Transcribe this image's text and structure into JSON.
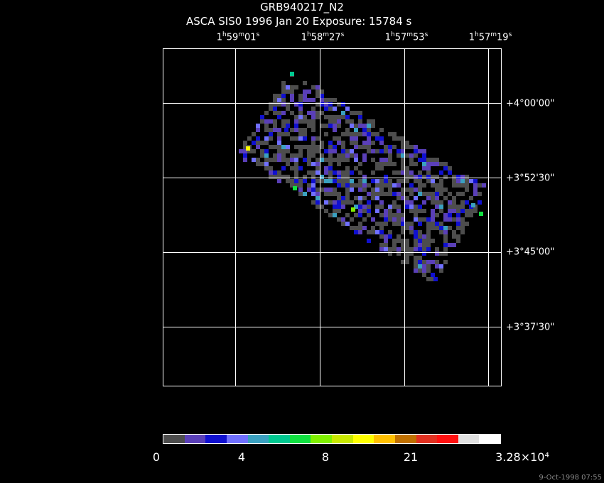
{
  "header": {
    "title": "GRB940217_N2",
    "subtitle": "ASCA SIS0   1996 Jan 20    Exposure: 15784 s"
  },
  "ra_ticks": [
    {
      "h": "1",
      "m": "59",
      "s": "01"
    },
    {
      "h": "1",
      "m": "58",
      "s": "27"
    },
    {
      "h": "1",
      "m": "57",
      "s": "53"
    },
    {
      "h": "1",
      "m": "57",
      "s": "19"
    }
  ],
  "dec_ticks": [
    "+4°00'00\"",
    "+3°52'30\"",
    "+3°45'00\"",
    "+3°37'30\""
  ],
  "colorbar": {
    "colors": [
      "#4d4d4d",
      "#5a3fb8",
      "#1010d0",
      "#7070ff",
      "#3aa0c0",
      "#00c890",
      "#10e040",
      "#80f000",
      "#c8e800",
      "#ffff00",
      "#ffc000",
      "#c07000",
      "#e03020",
      "#ff1010",
      "#e0e0e0",
      "#ffffff"
    ],
    "labels": [
      "0",
      "4",
      "8",
      "21",
      "3.28×10⁴"
    ]
  },
  "footer": {
    "timestamp": "9-Oct-1998 07:55"
  }
}
